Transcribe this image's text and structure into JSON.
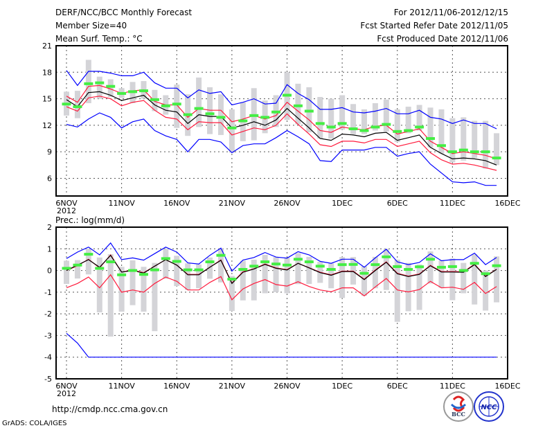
{
  "header": {
    "title": "DERF/NCC/BCC Monthly Forecast",
    "member_size": "Member Size=40",
    "variable": "Mean Surf. Temp.: °C",
    "period": "For 2012/11/06-2012/12/15",
    "started": "Fcst Started Refer Date 2012/11/05",
    "produced": "Fcst Produced Date 2012/11/06"
  },
  "footer": {
    "url": "http://cmdp.ncc.cma.gov.cn",
    "credit": "GrADS: COLA/IGES",
    "logo_bcc": "BCC",
    "logo_ncc": "NCC"
  },
  "colors": {
    "max_min": "#0000ff",
    "spread": "#ff1a3c",
    "mean": "#000000",
    "obs": "#44ee44",
    "box": "#d4d4d8"
  },
  "chart_data": [
    {
      "type": "line",
      "title": "Mean Surf. Temp.: °C",
      "xlabel": "",
      "ylabel": "°C",
      "x_tick_labels": [
        "6NOV",
        "11NOV",
        "16NOV",
        "21NOV",
        "26NOV",
        "1DEC",
        "6DEC",
        "11DEC",
        "16DEC"
      ],
      "x_year_label": "2012",
      "y_ticks": [
        "6",
        "9",
        "12",
        "15",
        "18",
        "21"
      ],
      "ylim": [
        4,
        21
      ],
      "grid": true,
      "days": 40,
      "series": [
        {
          "name": "ensemble max",
          "color": "#0000ff",
          "values": [
            18.2,
            16.5,
            18.1,
            18.1,
            17.9,
            17.6,
            17.6,
            18.0,
            16.8,
            16.2,
            16.2,
            15.1,
            16.0,
            15.6,
            15.8,
            14.3,
            14.6,
            15.0,
            14.4,
            14.5,
            16.6,
            15.6,
            14.9,
            13.8,
            13.8,
            14.0,
            13.5,
            13.4,
            13.6,
            13.9,
            13.3,
            13.3,
            13.7,
            12.9,
            12.7,
            12.2,
            12.6,
            12.2,
            12.2,
            11.6
          ]
        },
        {
          "name": "ensemble min",
          "color": "#0000ff",
          "values": [
            12.1,
            11.8,
            12.7,
            13.4,
            12.9,
            11.7,
            12.4,
            12.7,
            11.4,
            10.8,
            10.4,
            9.0,
            10.4,
            10.4,
            10.1,
            8.9,
            9.7,
            9.9,
            9.9,
            10.6,
            11.4,
            10.7,
            9.9,
            8.0,
            7.9,
            9.2,
            9.2,
            9.2,
            9.5,
            9.5,
            8.5,
            8.8,
            9.0,
            7.6,
            6.6,
            5.6,
            5.5,
            5.6,
            5.2,
            5.2
          ]
        },
        {
          "name": "spread upper",
          "color": "#ff1a3c",
          "values": [
            15.3,
            14.6,
            16.4,
            16.5,
            16.1,
            15.6,
            15.9,
            16.0,
            14.7,
            14.3,
            14.3,
            12.9,
            13.9,
            13.7,
            13.7,
            12.4,
            12.7,
            13.1,
            12.7,
            13.1,
            14.6,
            13.6,
            12.6,
            11.4,
            11.2,
            11.8,
            11.6,
            11.5,
            11.9,
            12.0,
            11.0,
            11.3,
            11.6,
            10.2,
            9.5,
            8.8,
            9.0,
            8.8,
            8.6,
            8.2
          ]
        },
        {
          "name": "spread lower",
          "color": "#ff1a3c",
          "values": [
            14.1,
            13.6,
            15.1,
            15.3,
            15.0,
            14.2,
            14.6,
            14.8,
            13.7,
            12.9,
            12.7,
            11.5,
            12.4,
            12.3,
            12.3,
            10.9,
            11.3,
            11.7,
            11.5,
            12.0,
            13.3,
            12.1,
            11.0,
            9.8,
            9.6,
            10.2,
            10.2,
            10.0,
            10.4,
            10.4,
            9.6,
            9.9,
            10.2,
            8.9,
            8.1,
            7.6,
            7.7,
            7.5,
            7.2,
            6.9
          ]
        },
        {
          "name": "ensemble mean",
          "color": "#000000",
          "values": [
            14.9,
            14.1,
            15.7,
            15.8,
            15.4,
            14.8,
            15.1,
            15.4,
            14.3,
            13.7,
            13.5,
            12.2,
            13.2,
            13.0,
            13.0,
            11.7,
            12.0,
            12.4,
            12.0,
            12.6,
            13.9,
            12.8,
            11.7,
            10.5,
            10.3,
            11.0,
            10.9,
            10.7,
            11.1,
            11.2,
            10.3,
            10.6,
            10.9,
            9.5,
            8.8,
            8.2,
            8.3,
            8.2,
            8.0,
            7.5
          ]
        }
      ],
      "markers": {
        "name": "green bar",
        "values": [
          14.4,
          14.1,
          16.7,
          16.8,
          16.4,
          15.6,
          15.8,
          15.9,
          14.9,
          14.2,
          14.4,
          13.2,
          13.9,
          13.3,
          12.9,
          11.7,
          12.5,
          13.1,
          12.9,
          13.5,
          15.4,
          14.2,
          13.6,
          12.2,
          11.8,
          12.2,
          11.6,
          11.4,
          11.8,
          12.1,
          11.3,
          11.4,
          11.8,
          10.5,
          9.7,
          9.0,
          9.2,
          9.0,
          9.0,
          8.3
        ]
      },
      "boxes": {
        "high": [
          15.8,
          15.9,
          19.4,
          17.5,
          17.2,
          16.2,
          16.9,
          17.0,
          16.0,
          15.4,
          16.6,
          15.5,
          17.4,
          16.3,
          15.5,
          13.8,
          14.6,
          16.2,
          14.8,
          15.4,
          18.0,
          16.7,
          16.3,
          15.2,
          15.0,
          15.4,
          14.4,
          13.8,
          14.5,
          14.9,
          13.8,
          14.1,
          14.3,
          14.0,
          13.8,
          12.8,
          12.9,
          12.5,
          12.5,
          11.1
        ],
        "low": [
          13.1,
          12.8,
          14.5,
          15.0,
          15.2,
          15.1,
          14.5,
          15.0,
          13.6,
          13.2,
          11.7,
          10.8,
          11.8,
          11.0,
          10.9,
          8.9,
          10.2,
          10.3,
          11.1,
          11.8,
          12.6,
          12.1,
          11.2,
          10.5,
          10.5,
          11.5,
          11.0,
          11.0,
          11.4,
          11.3,
          10.1,
          11.1,
          11.4,
          9.5,
          8.8,
          7.8,
          8.0,
          8.3,
          7.1,
          7.5
        ]
      }
    },
    {
      "type": "line",
      "title": "Prec.: log(mm/d)",
      "xlabel": "",
      "ylabel": "log(mm/d)",
      "x_tick_labels": [
        "6NOV",
        "11NOV",
        "16NOV",
        "21NOV",
        "26NOV",
        "1DEC",
        "6DEC",
        "11DEC",
        "16DEC"
      ],
      "x_year_label": "2012",
      "y_ticks": [
        "-5",
        "-4",
        "-3",
        "-2",
        "-1",
        "0",
        "1",
        "2"
      ],
      "ylim": [
        -5,
        2
      ],
      "grid": true,
      "days": 40,
      "series": [
        {
          "name": "ensemble max",
          "color": "#0000ff",
          "values": [
            0.55,
            0.85,
            1.08,
            0.72,
            1.27,
            0.5,
            0.58,
            0.48,
            0.78,
            1.08,
            0.85,
            0.35,
            0.3,
            0.7,
            1.03,
            -0.03,
            0.48,
            0.6,
            0.83,
            0.62,
            0.57,
            0.87,
            0.72,
            0.42,
            0.33,
            0.52,
            0.52,
            0.15,
            0.58,
            0.98,
            0.4,
            0.27,
            0.37,
            0.77,
            0.45,
            0.5,
            0.5,
            0.8,
            0.27,
            0.6
          ]
        },
        {
          "name": "ensemble min",
          "color": "#0000ff",
          "values": [
            -2.9,
            -3.35,
            -4,
            -4,
            -4,
            -4,
            -4,
            -4,
            -4,
            -4,
            -4,
            -4,
            -4,
            -4,
            -4,
            -4,
            -4,
            -4,
            -4,
            -4,
            -4,
            -4,
            -4,
            -4,
            -4,
            -4,
            -4,
            -4,
            -4,
            -4,
            -4,
            -4,
            -4,
            -4,
            -4,
            -4,
            -4,
            -4,
            -4,
            -4
          ]
        },
        {
          "name": "spread lower",
          "color": "#ff1a3c",
          "values": [
            -0.8,
            -0.6,
            -0.3,
            -0.8,
            -0.2,
            -1.0,
            -0.9,
            -1.0,
            -0.6,
            -0.3,
            -0.5,
            -0.9,
            -0.9,
            -0.55,
            -0.28,
            -1.35,
            -0.85,
            -0.6,
            -0.42,
            -0.65,
            -0.72,
            -0.52,
            -0.74,
            -0.9,
            -0.98,
            -0.8,
            -0.8,
            -1.17,
            -0.76,
            -0.37,
            -0.9,
            -0.99,
            -0.88,
            -0.5,
            -0.8,
            -0.77,
            -0.87,
            -0.55,
            -1.06,
            -0.74
          ]
        },
        {
          "name": "spread upper",
          "color": "#ff1a3c",
          "values": [
            0.0,
            0.22,
            0.52,
            0.12,
            0.72,
            -0.07,
            0.02,
            -0.1,
            0.2,
            0.5,
            0.25,
            -0.18,
            -0.18,
            0.15,
            0.49,
            -0.58,
            -0.06,
            0.08,
            0.3,
            0.12,
            0.04,
            0.33,
            0.13,
            -0.08,
            -0.2,
            -0.03,
            -0.03,
            -0.4,
            0.02,
            0.4,
            -0.13,
            -0.26,
            -0.16,
            0.24,
            -0.05,
            -0.05,
            -0.06,
            0.29,
            -0.26,
            0.06
          ]
        },
        {
          "name": "ensemble mean",
          "color": "#000000",
          "values": [
            0.0,
            0.25,
            0.5,
            0.15,
            0.7,
            -0.07,
            0.0,
            -0.12,
            0.2,
            0.5,
            0.25,
            -0.2,
            -0.2,
            0.15,
            0.47,
            -0.6,
            -0.08,
            0.07,
            0.28,
            0.1,
            0.02,
            0.33,
            0.12,
            -0.1,
            -0.22,
            -0.05,
            -0.05,
            -0.42,
            0.0,
            0.38,
            -0.15,
            -0.28,
            -0.18,
            0.22,
            -0.07,
            -0.07,
            -0.08,
            0.27,
            -0.28,
            0.05
          ]
        }
      ],
      "markers": {
        "name": "green bar",
        "values": [
          0.1,
          0.25,
          0.75,
          0.1,
          0.4,
          -0.2,
          0.0,
          -0.18,
          0.03,
          0.55,
          0.42,
          0.03,
          0.03,
          0.4,
          0.7,
          -0.4,
          0.05,
          0.2,
          0.4,
          0.3,
          0.25,
          0.52,
          0.4,
          0.2,
          0.05,
          0.27,
          0.28,
          -0.13,
          0.27,
          0.63,
          0.18,
          0.05,
          0.17,
          0.52,
          0.15,
          0.18,
          0.0,
          0.33,
          -0.15,
          0.22
        ]
      },
      "boxes": {
        "high": [
          0.45,
          0.48,
          1.0,
          0.6,
          0.75,
          0.17,
          0.47,
          0.17,
          0.35,
          1.0,
          0.68,
          0.33,
          0.28,
          0.6,
          1.0,
          -0.25,
          0.45,
          0.5,
          0.72,
          0.62,
          0.6,
          0.8,
          0.63,
          0.4,
          0.33,
          0.62,
          0.62,
          0.2,
          0.63,
          1.0,
          0.5,
          0.35,
          0.28,
          0.88,
          0.47,
          0.55,
          0.35,
          0.75,
          0.0,
          0.65
        ],
        "low": [
          -0.62,
          -0.37,
          -0.18,
          -1.93,
          -3.05,
          -1.9,
          -1.6,
          -1.9,
          -2.8,
          -0.38,
          -0.72,
          -0.9,
          -0.82,
          -0.38,
          -0.55,
          -1.87,
          -1.38,
          -1.38,
          -1.05,
          -1.0,
          -1.05,
          -0.63,
          -0.62,
          -0.57,
          -0.82,
          -1.27,
          -0.65,
          -1.17,
          -0.82,
          -0.9,
          -2.37,
          -1.88,
          -1.82,
          -0.6,
          -0.8,
          -1.37,
          -1.05,
          -1.57,
          -1.85,
          -1.47
        ]
      }
    }
  ]
}
